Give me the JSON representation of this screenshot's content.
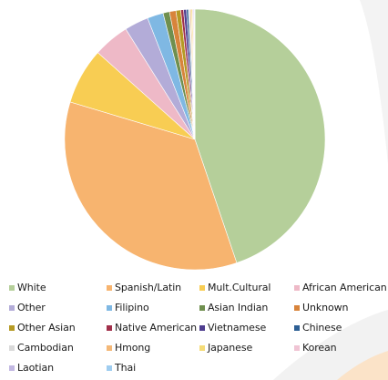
{
  "chart_data": {
    "type": "pie",
    "title": "",
    "series": [
      {
        "name": "White",
        "value": 45.0,
        "color": "#b5cf9a"
      },
      {
        "name": "Spanish/Latin",
        "value": 35.0,
        "color": "#f7b46f"
      },
      {
        "name": "Mult.Cultural",
        "value": 7.0,
        "color": "#f8cd53"
      },
      {
        "name": "African American",
        "value": 4.5,
        "color": "#eeb9c7"
      },
      {
        "name": "Other",
        "value": 3.0,
        "color": "#b3acd8"
      },
      {
        "name": "Filipino",
        "value": 2.0,
        "color": "#7fb8e3"
      },
      {
        "name": "Asian Indian",
        "value": 0.8,
        "color": "#6f8f4f"
      },
      {
        "name": "Unknown",
        "value": 0.8,
        "color": "#d8843b"
      },
      {
        "name": "Other Asian",
        "value": 0.6,
        "color": "#b59a24"
      },
      {
        "name": "Native American",
        "value": 0.35,
        "color": "#a1304b"
      },
      {
        "name": "Vietnamese",
        "value": 0.35,
        "color": "#4f3e8f"
      },
      {
        "name": "Chinese",
        "value": 0.25,
        "color": "#2d5f94"
      },
      {
        "name": "Cambodian",
        "value": 0.2,
        "color": "#d9d9d9"
      },
      {
        "name": "Hmong",
        "value": 0.15,
        "color": "#f4b878"
      },
      {
        "name": "Japanese",
        "value": 0.15,
        "color": "#f5dc78"
      },
      {
        "name": "Korean",
        "value": 0.12,
        "color": "#f0c4d4"
      },
      {
        "name": "Laotian",
        "value": 0.1,
        "color": "#c2b8e2"
      },
      {
        "name": "Thai",
        "value": 0.08,
        "color": "#9fcdf0"
      }
    ],
    "legend_position": "bottom"
  }
}
